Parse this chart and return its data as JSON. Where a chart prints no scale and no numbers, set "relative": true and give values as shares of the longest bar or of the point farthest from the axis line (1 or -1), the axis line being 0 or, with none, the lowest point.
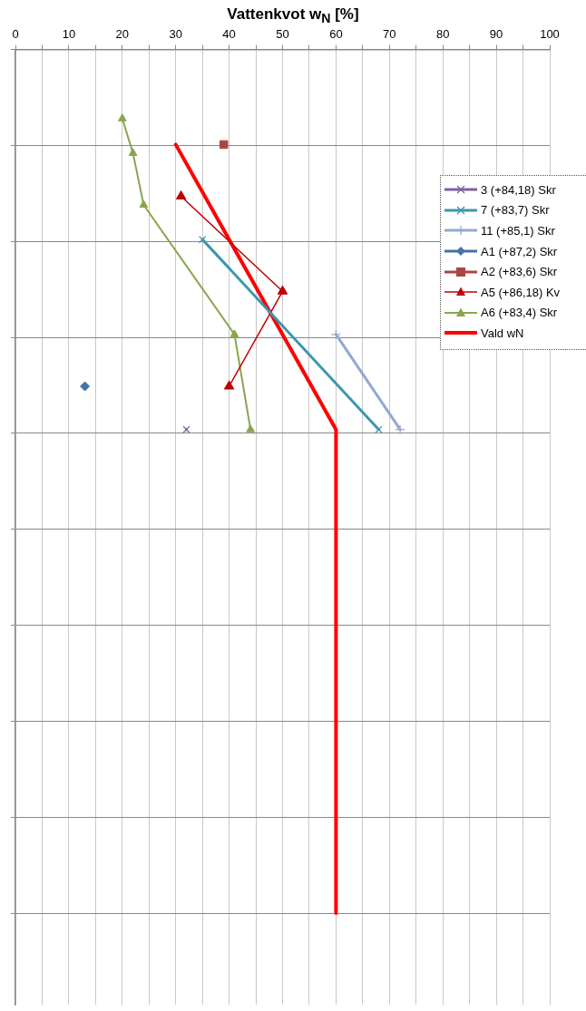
{
  "chart_data": {
    "type": "line",
    "xlabel": "Vattenkvot w$_{N}$ [%]",
    "relative": true,
    "xlim": [
      0,
      100
    ],
    "xticks": [
      0,
      {
        "value": 5,
        "label": null
      },
      10,
      {
        "value": 15,
        "label": null
      },
      20,
      {
        "value": 25,
        "label": null
      },
      30,
      {
        "value": 35,
        "label": null
      },
      40,
      {
        "value": 45,
        "label": null
      },
      50,
      {
        "value": 55,
        "label": null
      },
      60,
      {
        "value": 65,
        "label": null
      },
      70,
      {
        "value": 75,
        "label": null
      },
      80,
      {
        "value": 85,
        "label": null
      },
      90,
      {
        "value": 95,
        "label": null
      },
      100
    ],
    "grid": true,
    "legend": "right",
    "tick_labels": "x",
    "series": [
      {
        "name": "3 (+84,18) Skr",
        "color": "#7f60a0",
        "marker": "cross",
        "x": [
          32
        ],
        "values": [
          -0.44
        ]
      },
      {
        "name": "7 (+83,7) Skr",
        "color": "#3d96ae",
        "marker": "cross",
        "x": [
          35,
          68
        ],
        "values": [
          -0.22,
          -0.44
        ]
      },
      {
        "name": "11 (+85,1) Skr",
        "color": "#93a9cf",
        "marker": "plus",
        "x": [
          60,
          72
        ],
        "values": [
          -0.33,
          -0.44
        ]
      },
      {
        "name": "A1 (+87,2) Skr",
        "color": "#4572a7",
        "marker": "diamond",
        "x": [
          13
        ],
        "values": [
          -0.39
        ]
      },
      {
        "name": "A2 (+83,6) Skr",
        "color": "#aa4643",
        "marker": "square",
        "x": [
          39
        ],
        "values": [
          -0.11
        ]
      },
      {
        "name": "A5 (+86,18) Kv",
        "color": "#c00000",
        "marker": "triangle",
        "x": [
          31,
          50,
          40
        ],
        "values": [
          -0.17,
          -0.28,
          -0.39
        ]
      },
      {
        "name": "A6 (+83,4) Skr",
        "color": "#89a54e",
        "marker": "triangle",
        "x": [
          20,
          22,
          24,
          41,
          44
        ],
        "values": [
          -0.08,
          -0.12,
          -0.18,
          -0.33,
          -0.44
        ]
      },
      {
        "name": "Vald wN",
        "color": "#ff0000",
        "marker": "none",
        "x": [
          30,
          60,
          60
        ],
        "values": [
          -0.11,
          -0.44,
          -1
        ]
      }
    ]
  }
}
